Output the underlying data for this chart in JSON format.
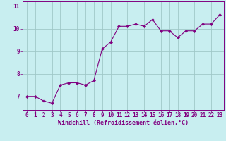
{
  "x": [
    0,
    1,
    2,
    3,
    4,
    5,
    6,
    7,
    8,
    9,
    10,
    11,
    12,
    13,
    14,
    15,
    16,
    17,
    18,
    19,
    20,
    21,
    22,
    23
  ],
  "y": [
    7.0,
    7.0,
    6.8,
    6.7,
    7.5,
    7.6,
    7.6,
    7.5,
    7.7,
    9.1,
    9.4,
    10.1,
    10.1,
    10.2,
    10.1,
    10.4,
    9.9,
    9.9,
    9.6,
    9.9,
    9.9,
    10.2,
    10.2,
    10.6
  ],
  "line_color": "#800080",
  "marker": "D",
  "marker_size": 2.2,
  "bg_color": "#c8eef0",
  "grid_color": "#a0c8c8",
  "xlabel": "Windchill (Refroidissement éolien,°C)",
  "ylabel_ticks": [
    7,
    8,
    9,
    10,
    11
  ],
  "xlim": [
    -0.5,
    23.5
  ],
  "ylim": [
    6.4,
    11.2
  ],
  "xlabel_color": "#800080",
  "tick_color": "#800080",
  "tick_label_color": "#800080",
  "label_fontsize": 6.0,
  "tick_fontsize": 5.5
}
